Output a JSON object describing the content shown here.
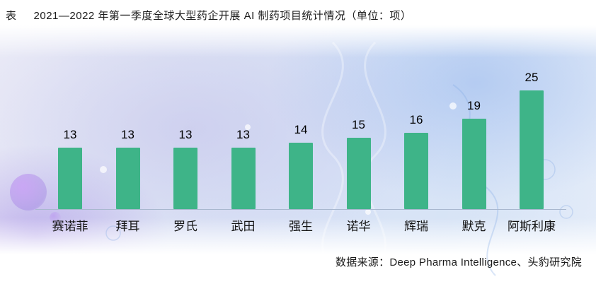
{
  "header": {
    "prefix": "表",
    "title": "2021—2022 年第一季度全球大型药企开展 AI 制药项目统计情况（单位：项）"
  },
  "footer": {
    "source": "数据来源：Deep Pharma Intelligence、头豹研究院"
  },
  "chart_data": {
    "type": "bar",
    "title": "2021—2022 年第一季度全球大型药企开展 AI 制药项目统计情况",
    "unit": "项",
    "categories": [
      "赛诺菲",
      "拜耳",
      "罗氏",
      "武田",
      "强生",
      "诺华",
      "辉瑞",
      "默克",
      "阿斯利康"
    ],
    "values": [
      13,
      13,
      13,
      13,
      14,
      15,
      16,
      19,
      25
    ],
    "ylim": [
      0,
      25
    ],
    "grid": false,
    "legend": "none",
    "bar_color": "#3eb488",
    "source": "Deep Pharma Intelligence、头豹研究院"
  },
  "colors": {
    "bar": "#3eb488",
    "axis": "#a9b8cf",
    "text": "#1a1a1a"
  }
}
